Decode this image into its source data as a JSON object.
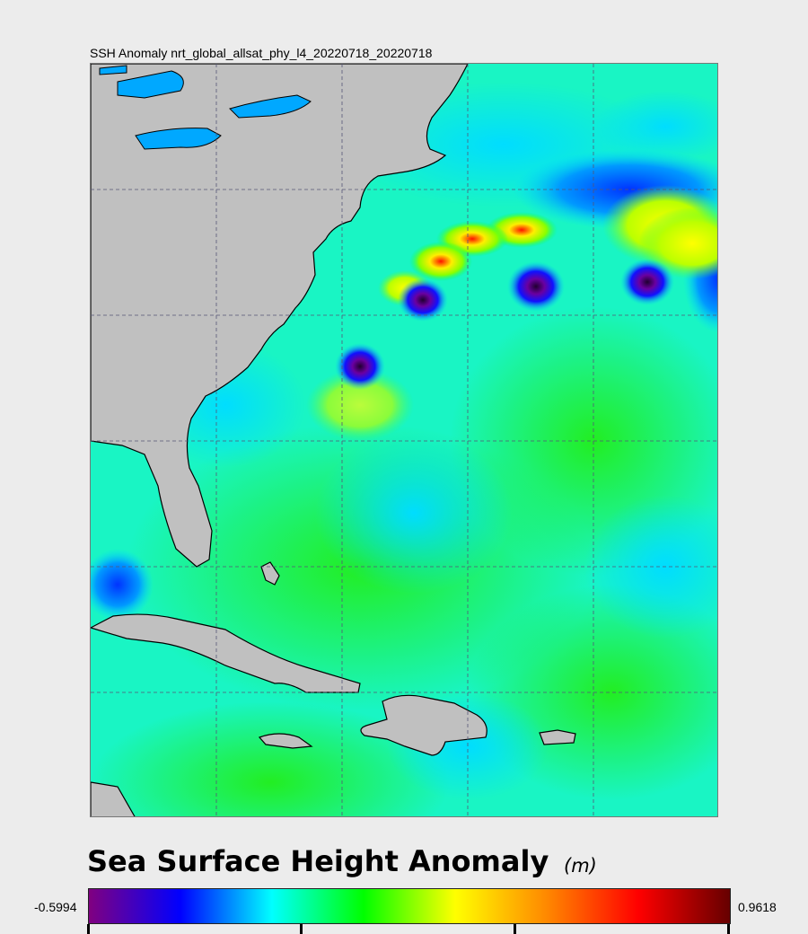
{
  "map": {
    "title": "SSH Anomaly nrt_global_allsat_phy_l4_20220718_20220718",
    "colors": {
      "land": "#c0c0c0",
      "coast": "#000000",
      "lakes": "#00a8ff",
      "grid": "#555577"
    }
  },
  "legend": {
    "title": "Sea Surface Height Anomaly",
    "unit": "(m)",
    "min_label": "-0.5994",
    "max_label": "0.9618",
    "colormap": [
      "#800080",
      "#0000ff",
      "#00ffff",
      "#00ff00",
      "#ffff00",
      "#ff8800",
      "#ff0000",
      "#660000"
    ]
  }
}
